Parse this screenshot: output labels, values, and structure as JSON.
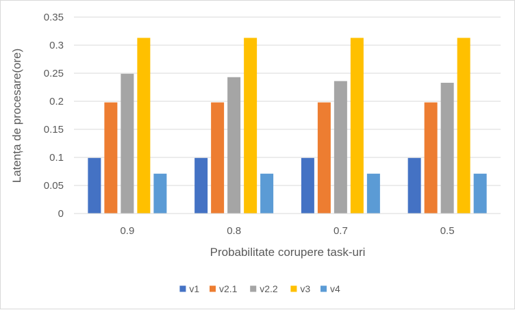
{
  "chart_data": {
    "type": "bar",
    "title": "",
    "xlabel": "Probabilitate corupere task-uri",
    "ylabel": "Latența de procesare(ore)",
    "categories": [
      "0.9",
      "0.8",
      "0.7",
      "0.5"
    ],
    "ylim": [
      0,
      0.35
    ],
    "yticks": [
      "0",
      "0.05",
      "0.1",
      "0.15",
      "0.2",
      "0.25",
      "0.3",
      "0.35"
    ],
    "ytick_values": [
      0,
      0.05,
      0.1,
      0.15,
      0.2,
      0.25,
      0.3,
      0.35
    ],
    "grid": true,
    "legend_position": "bottom",
    "series": [
      {
        "name": "v1",
        "color": "#4472C4",
        "values": [
          0.099,
          0.099,
          0.099,
          0.099
        ]
      },
      {
        "name": "v2.1",
        "color": "#ED7D31",
        "values": [
          0.198,
          0.198,
          0.198,
          0.198
        ]
      },
      {
        "name": "v2.2",
        "color": "#A5A5A5",
        "values": [
          0.249,
          0.243,
          0.236,
          0.233
        ]
      },
      {
        "name": "v3",
        "color": "#FFC000",
        "values": [
          0.313,
          0.313,
          0.313,
          0.313
        ]
      },
      {
        "name": "v4",
        "color": "#5B9BD5",
        "values": [
          0.071,
          0.071,
          0.071,
          0.071
        ]
      }
    ]
  }
}
